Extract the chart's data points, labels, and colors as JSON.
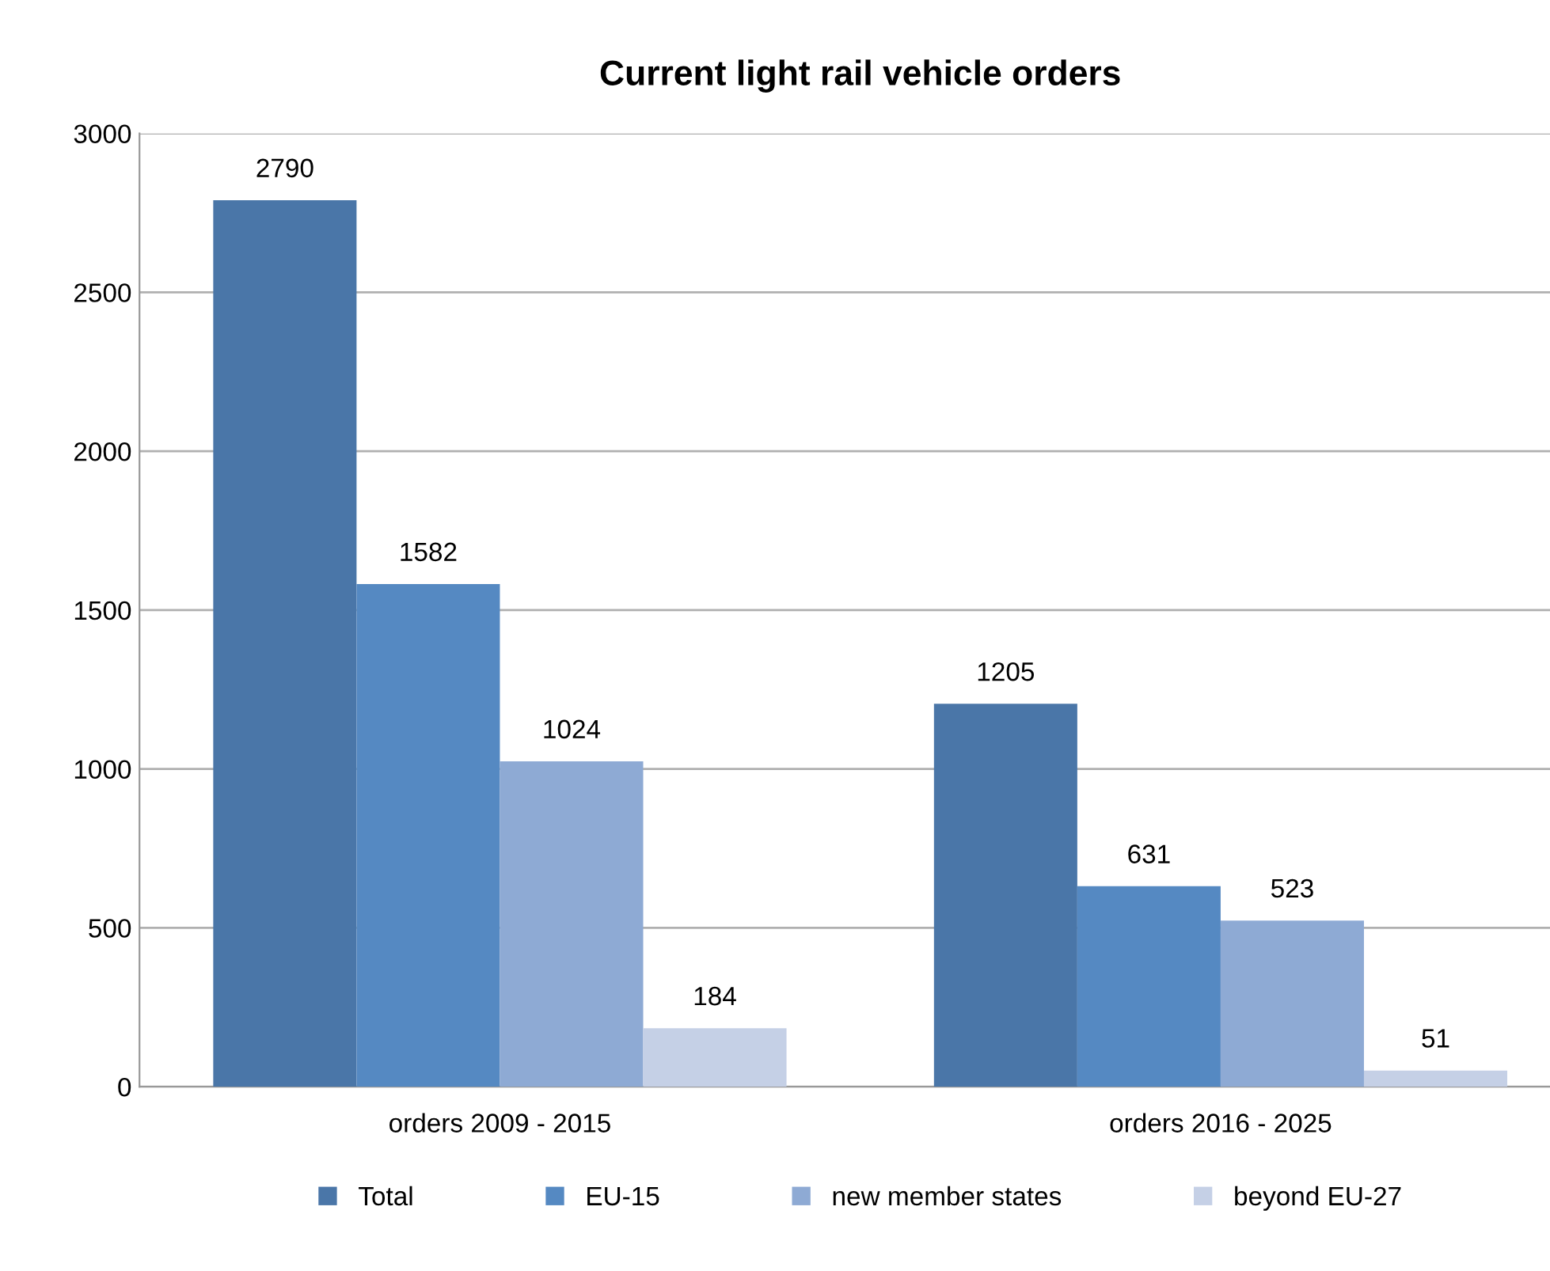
{
  "chart_data": {
    "type": "bar",
    "title": "Current light rail vehicle orders",
    "categories": [
      "orders 2009 - 2015",
      "orders 2016 - 2025"
    ],
    "series": [
      {
        "name": "Total",
        "color": "#4a76a8",
        "values": [
          2790,
          1205
        ]
      },
      {
        "name": "EU-15",
        "color": "#5589c2",
        "values": [
          1582,
          631
        ]
      },
      {
        "name": "new member states",
        "color": "#8eaad4",
        "values": [
          1024,
          523
        ]
      },
      {
        "name": "beyond EU-27",
        "color": "#c5d0e6",
        "values": [
          184,
          51
        ]
      }
    ],
    "ylim": [
      0,
      3000
    ],
    "yticks": [
      0,
      500,
      1000,
      1500,
      2000,
      2500,
      3000
    ],
    "grid": "y",
    "legend": "bottom",
    "data_labels": true
  }
}
